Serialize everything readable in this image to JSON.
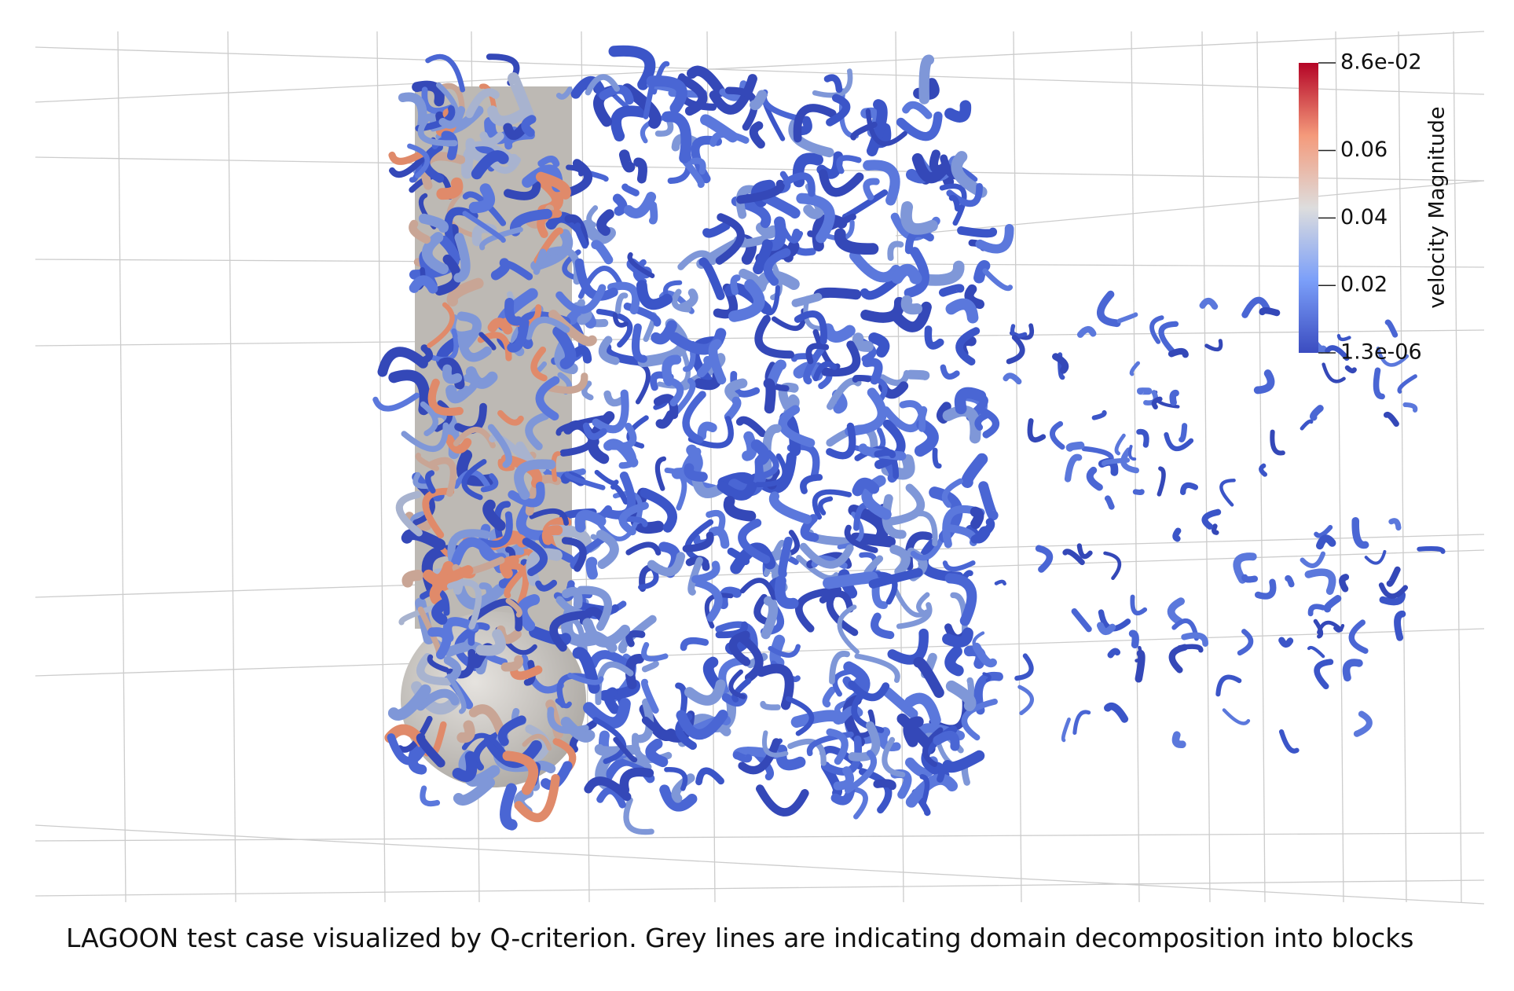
{
  "colorbar": {
    "title": "velocity Magnitude",
    "ticks": [
      {
        "value": 0.086,
        "label": "8.6e-02"
      },
      {
        "value": 0.06,
        "label": "0.06"
      },
      {
        "value": 0.04,
        "label": "0.04"
      },
      {
        "value": 0.02,
        "label": "0.02"
      },
      {
        "value": 1.3e-06,
        "label": "1.3e-06"
      }
    ]
  },
  "caption": "LAGOON test case visualized by Q-criterion. Grey lines are indicating domain decomposition into blocks"
}
